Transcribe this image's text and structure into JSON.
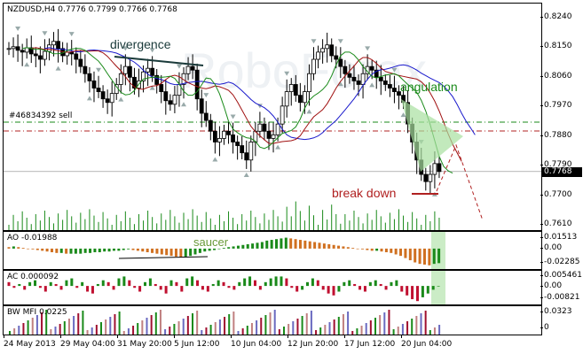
{
  "symbol_header": "NZDUSD,H4  0.7776 0.7799 0.7766 0.7768",
  "watermark": "RoboForex",
  "current_price": "0.7768",
  "order_label": "#46834392 sell",
  "annotations": {
    "divergence": "divergence",
    "angulation": "angulation",
    "break_down": "break down",
    "saucer": "saucer"
  },
  "colors": {
    "candles": "#000000",
    "ma_blue": "#1a1acc",
    "ma_red": "#a01010",
    "ma_green": "#1a8a1a",
    "order_line": "#1a8a1a",
    "level_line": "#b02020",
    "ao_up": "#1a8a1a",
    "ao_down": "#d07020",
    "ac_up": "#1a8a1a",
    "ac_down": "#c01030",
    "highlight": "#a8e0a0"
  },
  "price_axis": [
    "0.8240",
    "0.8150",
    "0.8060",
    "0.7970",
    "0.7880",
    "0.7790",
    "0.7700",
    "0.7610"
  ],
  "ao": {
    "label": "AO -0.01988",
    "axis": [
      "0.01513",
      "0.00",
      "-0.02285"
    ]
  },
  "ac": {
    "label": "AC 0.000092",
    "axis": [
      "0.005461",
      "0.00",
      "-0.00821"
    ]
  },
  "mfi": {
    "label": "BW MFI 0.0225",
    "axis": [
      "0.0323",
      "0"
    ]
  },
  "time_axis": [
    "24 May 2013",
    "29 May 04:00",
    "31 May 20:00",
    "5 Jun 12:00",
    "10 Jun 04:00",
    "12 Jun 20:00",
    "17 Jun 12:00",
    "20 Jun 04:00"
  ],
  "chart_data": {
    "type": "candlestick",
    "title": "NZDUSD,H4",
    "ylim": [
      0.761,
      0.824
    ],
    "close_series": [
      0.811,
      0.8115,
      0.8105,
      0.81,
      0.8112,
      0.8095,
      0.809,
      0.808,
      0.8102,
      0.812,
      0.813,
      0.811,
      0.809,
      0.81,
      0.8095,
      0.808,
      0.806,
      0.804,
      0.802,
      0.8,
      0.799,
      0.797,
      0.796,
      0.7985,
      0.801,
      0.804,
      0.806,
      0.803,
      0.8,
      0.802,
      0.8045,
      0.8055,
      0.8035,
      0.801,
      0.799,
      0.7965,
      0.7955,
      0.798,
      0.801,
      0.804,
      0.806,
      0.805,
      0.797,
      0.793,
      0.791,
      0.788,
      0.785,
      0.786,
      0.788,
      0.787,
      0.785,
      0.784,
      0.782,
      0.78,
      0.785,
      0.788,
      0.79,
      0.788,
      0.786,
      0.787,
      0.79,
      0.795,
      0.799,
      0.801,
      0.798,
      0.796,
      0.799,
      0.804,
      0.808,
      0.81,
      0.811,
      0.812,
      0.809,
      0.808,
      0.806,
      0.804,
      0.803,
      0.802,
      0.801,
      0.804,
      0.806,
      0.805,
      0.803,
      0.802,
      0.801,
      0.8,
      0.799,
      0.798,
      0.796,
      0.79,
      0.785,
      0.78,
      0.776,
      0.774,
      0.776,
      0.779,
      0.7768
    ],
    "ao_values": [
      0.002,
      0.003,
      0.002,
      0.001,
      0.0,
      -0.001,
      -0.002,
      -0.003,
      -0.004,
      -0.005,
      -0.006,
      -0.006,
      -0.007,
      -0.007,
      -0.007,
      -0.007,
      -0.006,
      -0.006,
      -0.005,
      -0.005,
      -0.004,
      -0.004,
      -0.003,
      -0.003,
      -0.002,
      -0.001,
      -0.002,
      -0.003,
      -0.004,
      -0.005,
      -0.006,
      -0.007,
      -0.008,
      -0.009,
      -0.01,
      -0.011,
      -0.012,
      -0.011,
      -0.01,
      -0.008,
      -0.006,
      -0.004,
      -0.003,
      -0.002,
      0.0,
      0.001,
      0.002,
      0.003,
      0.004,
      0.005,
      0.006,
      0.007,
      0.008,
      0.009,
      0.011,
      0.012,
      0.013,
      0.014,
      0.015,
      0.014,
      0.013,
      0.012,
      0.011,
      0.01,
      0.009,
      0.008,
      0.007,
      0.006,
      0.005,
      0.004,
      0.003,
      0.002,
      0.001,
      0.0,
      -0.001,
      -0.002,
      -0.003,
      -0.003,
      -0.004,
      -0.005,
      -0.006,
      -0.008,
      -0.01,
      -0.013,
      -0.016,
      -0.019,
      -0.021,
      -0.022,
      -0.023,
      -0.021,
      -0.02
    ],
    "ac_values": [
      0.002,
      -0.001,
      0.001,
      -0.002,
      0.002,
      0.003,
      -0.001,
      -0.003,
      0.002,
      0.001,
      -0.002,
      0.003,
      0.004,
      -0.001,
      0.002,
      -0.003,
      -0.004,
      0.001,
      0.003,
      0.002,
      -0.002,
      0.004,
      0.005,
      0.003,
      -0.001,
      -0.003,
      0.002,
      0.004,
      0.001,
      -0.002,
      -0.004,
      0.003,
      0.002,
      -0.003,
      0.004,
      0.005,
      0.003,
      -0.002,
      -0.003,
      0.001,
      0.003,
      0.002,
      -0.001,
      -0.002,
      0.002,
      0.004,
      0.005,
      0.003,
      -0.002,
      0.002,
      0.004,
      0.005,
      0.005,
      0.004,
      -0.001,
      -0.003,
      -0.002,
      0.002,
      0.004,
      0.003,
      -0.002,
      -0.004,
      -0.005,
      -0.003,
      0.002,
      0.003,
      0.001,
      -0.002,
      -0.003,
      0.002,
      0.003,
      0.001,
      -0.002,
      0.002,
      0.003,
      -0.003,
      -0.005,
      -0.007,
      -0.008,
      -0.006,
      -0.004,
      -0.002,
      0.0
    ]
  }
}
